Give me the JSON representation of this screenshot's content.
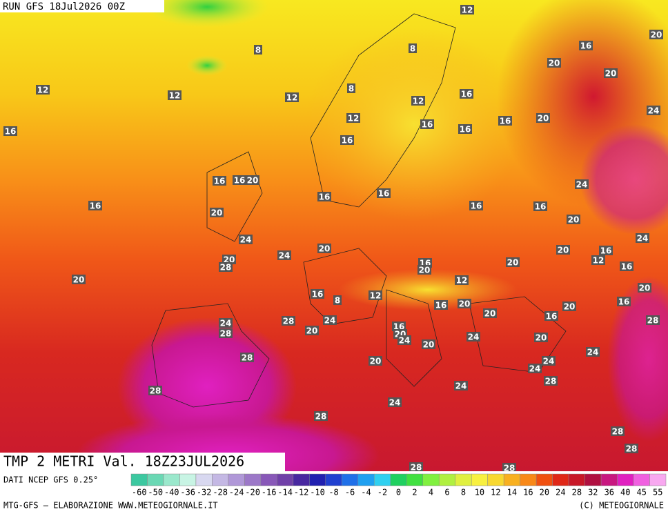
{
  "header": {
    "run": "RUN GFS 18Jul2026 00Z"
  },
  "map": {
    "title": "TMP 2 METRI Val. 18Z23JUL2026",
    "labels": [
      12,
      20,
      8,
      8,
      16,
      20,
      20,
      12,
      12,
      12,
      8,
      16,
      12,
      24,
      16,
      12,
      16,
      16,
      16,
      20,
      16,
      16,
      16,
      20,
      24,
      16,
      16,
      16,
      16,
      16,
      20,
      20,
      24,
      24,
      20,
      20,
      16,
      12,
      24,
      20,
      28,
      16,
      20,
      16,
      20,
      20,
      12,
      20,
      16,
      12,
      8,
      16,
      20,
      16,
      20,
      20,
      16,
      24,
      28,
      24,
      28,
      16,
      20,
      20,
      28,
      24,
      24,
      20,
      20,
      24,
      28,
      24,
      24,
      20,
      28,
      24,
      28,
      24,
      28,
      28,
      28,
      28,
      28
    ]
  },
  "footer": {
    "source": "DATI NCEP GFS 0.25°",
    "credit": "MTG-GFS — ELABORAZIONE WWW.METEOGIORNALE.IT",
    "copyright": "(C) METEOGIORNALE"
  },
  "colorbar": {
    "labels": [
      -60,
      -50,
      -40,
      -36,
      -32,
      -28,
      -24,
      -20,
      -16,
      -14,
      -12,
      -10,
      -8,
      -6,
      -4,
      -2,
      0,
      2,
      4,
      6,
      8,
      10,
      12,
      14,
      16,
      20,
      24,
      28,
      32,
      36,
      40,
      45,
      55
    ],
    "colors": [
      "#3cc8a0",
      "#6ad8b4",
      "#9ae8cc",
      "#c8f4e4",
      "#d8d8f0",
      "#c4b8e4",
      "#b098d8",
      "#9c78c8",
      "#8858b8",
      "#7040a8",
      "#4828a0",
      "#2020b0",
      "#2040d0",
      "#2070e8",
      "#20a0f0",
      "#30d0f0",
      "#20d060",
      "#40e040",
      "#80f040",
      "#b0f040",
      "#e0f040",
      "#f8f040",
      "#f8d830",
      "#f8b020",
      "#f88818",
      "#f05010",
      "#e02818",
      "#c81828",
      "#b01040",
      "#c81880",
      "#e020c0",
      "#f060e0",
      "#f8a8f0"
    ]
  }
}
